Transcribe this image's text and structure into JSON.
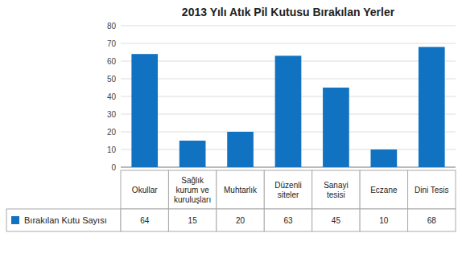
{
  "chart_data": {
    "type": "bar",
    "title": "2013 Yılı Atık Pil Kutusu Bırakılan Yerler",
    "categories": [
      "Okullar",
      "Sağlık\nkurum ve\nkuruluşları",
      "Muhtarlık",
      "Düzenli\nsiteler",
      "Sanayi\ntesisi",
      "Eczane",
      "Dini Tesis"
    ],
    "series": [
      {
        "name": "Bırakılan Kutu Sayısı",
        "color": "#1272C2",
        "values": [
          64,
          15,
          20,
          63,
          45,
          10,
          68
        ]
      }
    ],
    "ylim": [
      0,
      80
    ],
    "yticks": [
      0,
      10,
      20,
      30,
      40,
      50,
      60,
      70,
      80
    ],
    "grid": true
  }
}
